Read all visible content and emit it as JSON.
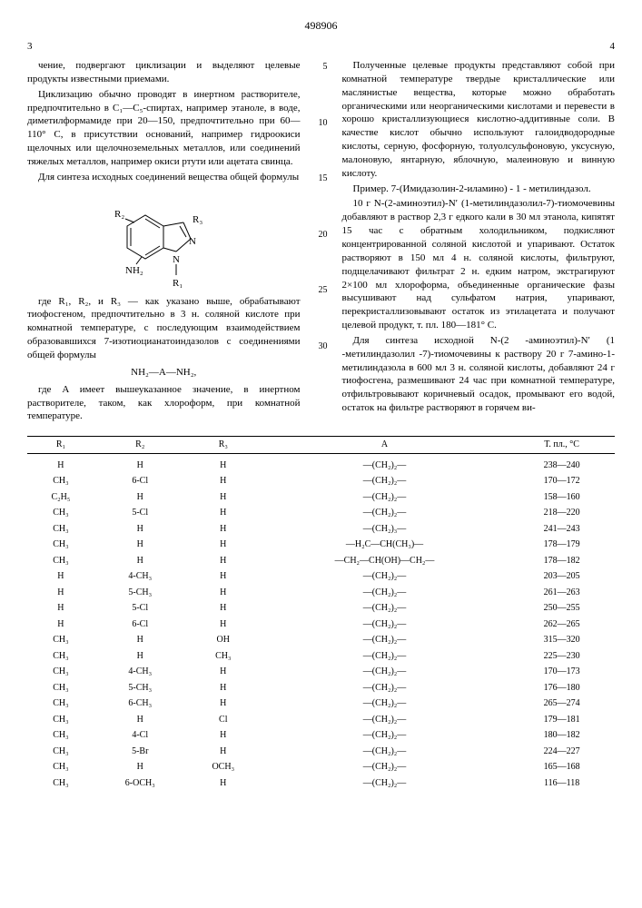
{
  "patent_number": "498906",
  "page_left_num": "3",
  "page_right_num": "4",
  "line_markers": [
    "5",
    "10",
    "15",
    "20",
    "25",
    "30"
  ],
  "left_col": {
    "p1": "чение, подвергают циклизации и выделяют целевые продукты известными приемами.",
    "p2": "Циклизацию обычно проводят в инертном растворителе, предпочтительно в C₁—C₅-спиртах, например этаноле, в воде, диметилформамиде при 20—150, предпочтительно при 60—110° C, в присутствии оснований, например гидроокиси щелочных или щелочноземельных металлов, или соединений тяжелых металлов, например окиси ртути или ацетата свинца.",
    "p3": "Для синтеза исходных соединений вещества общей формулы",
    "p4": "где R₁, R₂, и R₃ — как указано выше, обрабатывают тиофосгеном, предпочтительно в 3 н. соляной кислоте при комнатной температуре, с последующим взаимодействием образовавшихся 7-изотиоцианатоиндазолов с соединениями общей формулы",
    "formula_inline": "NH₂—A—NH₂,",
    "p5": "где A имеет вышеуказанное значение, в инертном растворителе, таком, как хлороформ, при комнатной температуре."
  },
  "right_col": {
    "p1": "Полученные целевые продукты представляют собой при комнатной температуре твердые кристаллические или маслянистые вещества, которые можно обработать органическими или неорганическими кислотами и перевести в хорошо кристаллизующиеся кислотно-аддитивные соли. В качестве кислот обычно используют галоидводородные кислоты, серную, фосфорную, толуолсульфоновую, уксусную, малоновую, янтарную, яблочную, малеиновую и винную кислоту.",
    "p2_label": "Пример. 7-(Имидазолин-2-иламино) - 1 - метилиндазол.",
    "p3": "10 г N-(2-аминоэтил)-N′ (1-метилиндазолил-7)-тиомочевины добавляют в раствор 2,3 г едкого кали в 30 мл этанола, кипятят 15 час с обратным холодильником, подкисляют концентрированной соляной кислотой и упаривают. Остаток растворяют в 150 мл 4 н. соляной кислоты, фильтруют, подщелачивают фильтрат 2 н. едким натром, экстрагируют 2×100 мл хлороформа, объединенные органические фазы высушивают над сульфатом натрия, упаривают, перекристаллизовывают остаток из этилацетата и получают целевой продукт, т. пл. 180—181° C.",
    "p4": "Для синтеза исходной N-(2 -аминоэтил)-N′ (1 -метилиндазолил -7)-тиомочевины к раствору 20 г 7-амино-1- метилиндазола в 600 мл 3 н. соляной кислоты, добавляют 24 г тиофосгена, размешивают 24 час при комнатной температуре, отфильтровывают коричневый осадок, промывают его водой, остаток на фильтре растворяют в горячем ви-"
  },
  "structure_labels": {
    "R1": "R₁",
    "R2": "R₂",
    "R3": "R₃",
    "NH2": "NH₂",
    "N": "N"
  },
  "table": {
    "columns": [
      "R₁",
      "R₂",
      "R₃",
      "A",
      "Т. пл., °C"
    ],
    "rows": [
      [
        "H",
        "H",
        "H",
        "—(CH₂)₂—",
        "238—240"
      ],
      [
        "CH₃",
        "6-Cl",
        "H",
        "—(CH₂)₂—",
        "170—172"
      ],
      [
        "C₂H₅",
        "H",
        "H",
        "—(CH₂)₂—",
        "158—160"
      ],
      [
        "CH₃",
        "5-Cl",
        "H",
        "—(CH₂)₂—",
        "218—220"
      ],
      [
        "CH₃",
        "H",
        "H",
        "—(CH₂)₃—",
        "241—243"
      ],
      [
        "CH₃",
        "H",
        "H",
        "—H₂C—CH(CH₃)—",
        "178—179"
      ],
      [
        "CH₃",
        "H",
        "H",
        "—CH₂—CH(OH)—CH₂—",
        "178—182"
      ],
      [
        "H",
        "4-CH₃",
        "H",
        "—(CH₂)₂—",
        "203—205"
      ],
      [
        "H",
        "5-CH₃",
        "H",
        "—(CH₂)₂—",
        "261—263"
      ],
      [
        "H",
        "5-Cl",
        "H",
        "—(CH₂)₂—",
        "250—255"
      ],
      [
        "H",
        "6-Cl",
        "H",
        "—(CH₂)₂—",
        "262—265"
      ],
      [
        "CH₃",
        "H",
        "OH",
        "—(CH₂)₂—",
        "315—320"
      ],
      [
        "CH₃",
        "H",
        "CH₃",
        "—(CH₂)₂—",
        "225—230"
      ],
      [
        "CH₃",
        "4-CH₃",
        "H",
        "—(CH₂)₂—",
        "170—173"
      ],
      [
        "CH₃",
        "5-CH₃",
        "H",
        "—(CH₂)₂—",
        "176—180"
      ],
      [
        "CH₃",
        "6-CH₃",
        "H",
        "—(CH₂)₂—",
        "265—274"
      ],
      [
        "CH₃",
        "H",
        "Cl",
        "—(CH₂)₂—",
        "179—181"
      ],
      [
        "CH₃",
        "4-Cl",
        "H",
        "—(CH₂)₂—",
        "180—182"
      ],
      [
        "CH₃",
        "5-Br",
        "H",
        "—(CH₂)₂—",
        "224—227"
      ],
      [
        "CH₃",
        "H",
        "OCH₃",
        "—(CH₂)₂—",
        "165—168"
      ],
      [
        "CH₃",
        "6-OCH₃",
        "H",
        "—(CH₂)₂—",
        "116—118"
      ]
    ]
  },
  "style": {
    "font_family": "Georgia, Times New Roman, serif",
    "body_font_size": 11,
    "table_font_size": 10,
    "text_color": "#000000",
    "background_color": "#ffffff",
    "border_color": "#000000"
  }
}
